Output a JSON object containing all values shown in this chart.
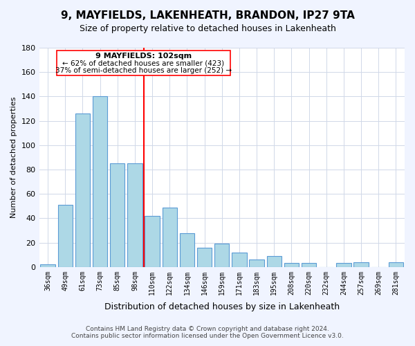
{
  "title": "9, MAYFIELDS, LAKENHEATH, BRANDON, IP27 9TA",
  "subtitle": "Size of property relative to detached houses in Lakenheath",
  "xlabel": "Distribution of detached houses by size in Lakenheath",
  "ylabel": "Number of detached properties",
  "bar_labels": [
    "36sqm",
    "49sqm",
    "61sqm",
    "73sqm",
    "85sqm",
    "98sqm",
    "110sqm",
    "122sqm",
    "134sqm",
    "146sqm",
    "159sqm",
    "171sqm",
    "183sqm",
    "195sqm",
    "208sqm",
    "220sqm",
    "232sqm",
    "244sqm",
    "257sqm",
    "269sqm",
    "281sqm"
  ],
  "bar_values": [
    2,
    51,
    126,
    140,
    85,
    85,
    42,
    49,
    28,
    16,
    19,
    12,
    6,
    9,
    3,
    3,
    0,
    3,
    4,
    0,
    4
  ],
  "bar_color": "#add8e6",
  "bar_edge_color": "#5b9bd5",
  "red_line_x": 5.5,
  "annotation_title": "9 MAYFIELDS: 102sqm",
  "annotation_line1": "← 62% of detached houses are smaller (423)",
  "annotation_line2": "37% of semi-detached houses are larger (252) →",
  "ylim": [
    0,
    180
  ],
  "yticks": [
    0,
    20,
    40,
    60,
    80,
    100,
    120,
    140,
    160,
    180
  ],
  "footer_line1": "Contains HM Land Registry data © Crown copyright and database right 2024.",
  "footer_line2": "Contains public sector information licensed under the Open Government Licence v3.0.",
  "bg_color": "#f0f4ff",
  "plot_bg_color": "#ffffff"
}
